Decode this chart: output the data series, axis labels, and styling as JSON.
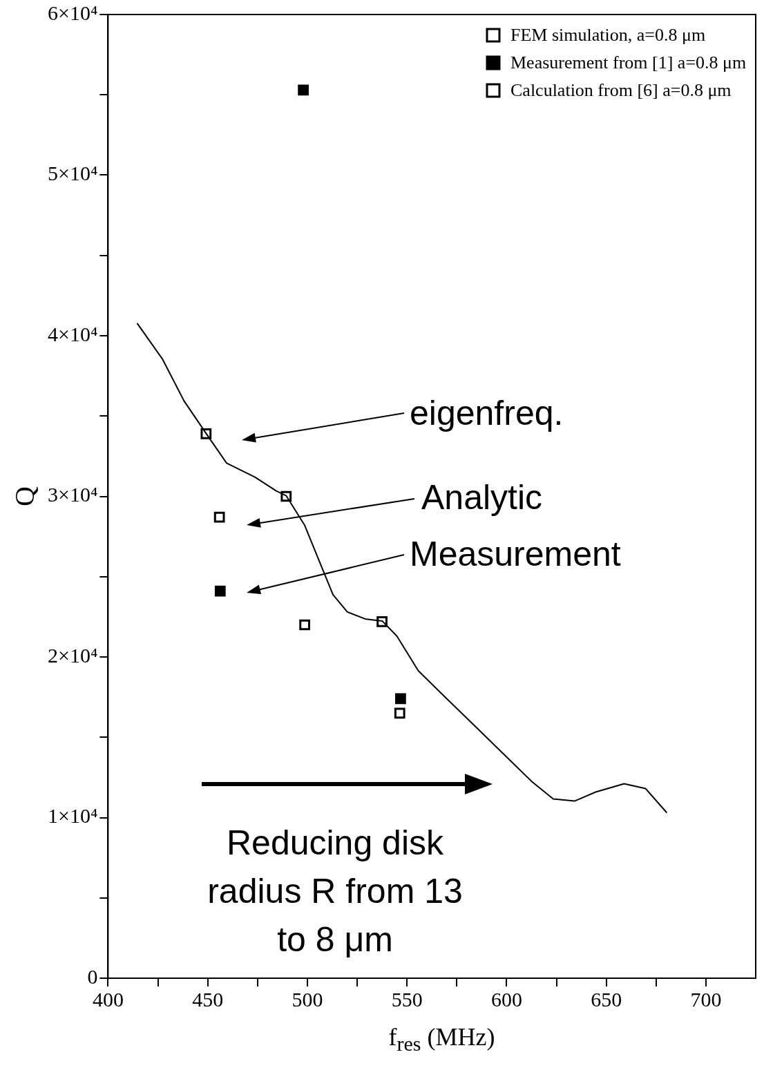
{
  "chart_data": {
    "type": "scatter",
    "xlabel": "f$_{res}$ (MHz)",
    "ylabel": "Q",
    "xlim": [
      400,
      725
    ],
    "ylim": [
      0,
      60000
    ],
    "xticks": [
      400,
      {
        "value": 425,
        "label": null
      },
      450,
      {
        "value": 475,
        "label": null
      },
      500,
      {
        "value": 525,
        "label": null
      },
      550,
      {
        "value": 575,
        "label": null
      },
      600,
      {
        "value": 625,
        "label": null
      },
      650,
      {
        "value": 675,
        "label": null
      },
      700
    ],
    "yticks": [
      0,
      {
        "value": 5000,
        "label": null
      },
      {
        "value": 10000,
        "label": "1×10⁴"
      },
      {
        "value": 15000,
        "label": null
      },
      {
        "value": 20000,
        "label": "2×10⁴"
      },
      {
        "value": 25000,
        "label": null
      },
      {
        "value": 30000,
        "label": "3×10⁴"
      },
      {
        "value": 35000,
        "label": null
      },
      {
        "value": 40000,
        "label": "4×10⁴"
      },
      {
        "value": 45000,
        "label": null
      },
      {
        "value": 50000,
        "label": "5×10⁴"
      },
      {
        "value": 55000,
        "label": null
      },
      {
        "value": 60000,
        "label": "6×10⁴"
      }
    ],
    "grid": false,
    "legend": "top right",
    "marker": "square",
    "series": [
      {
        "type": "line",
        "color": "#000000",
        "marker": "none",
        "x": [
          414.6,
          427.4,
          438.1,
          449.2,
          459.5,
          473.7,
          484.4,
          489.4,
          498.7,
          505.8,
          512.9,
          520.1,
          529.0,
          537.6,
          545.0,
          555.7,
          569.9,
          584.2,
          598.4,
          612.7,
          623.4,
          634.1,
          644.7,
          659.0,
          669.7,
          680.4
        ],
        "values": [
          40780,
          38530,
          35950,
          33920,
          32070,
          31200,
          30340,
          30040,
          28190,
          26030,
          23880,
          22800,
          22370,
          22240,
          21290,
          19140,
          17410,
          15690,
          13970,
          12240,
          11160,
          11030,
          11590,
          12110,
          11810,
          10300
        ]
      },
      {
        "name": "FEM simulation, a=0.8 μm",
        "color": "#000000",
        "x": [
          449.2,
          489.4,
          537.5
        ],
        "values": [
          33900,
          30000,
          22200
        ]
      },
      {
        "name": "Measurement from [1] a=0.8 μm",
        "color": "#000000",
        "x": [
          498,
          456.3,
          546.8
        ],
        "values": [
          55300,
          24100,
          17400
        ]
      },
      {
        "name": "Calculation from [6] a=0.8 μm",
        "color": "#000000",
        "x": [
          455.9,
          498.7,
          546.4
        ],
        "values": [
          28700,
          22000,
          16500
        ]
      }
    ],
    "annotations": [
      "eigenfreq.",
      "Analytic",
      "Measurement",
      "Reducing disk radius R from 13 to 8 μm"
    ]
  }
}
